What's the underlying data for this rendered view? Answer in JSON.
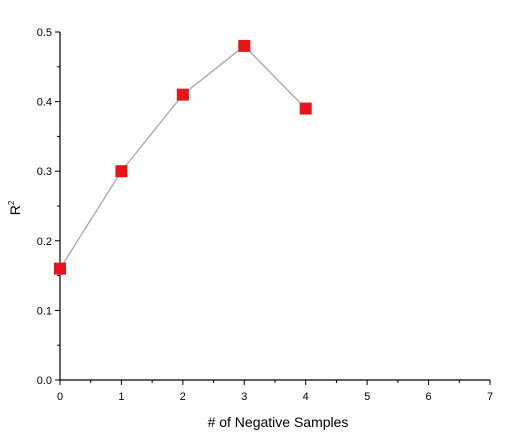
{
  "chart_data": {
    "type": "line",
    "xlabel": "# of Negative Samples",
    "ylabel": "R",
    "ylabel_superscript": "2",
    "xlim": [
      0,
      7
    ],
    "ylim": [
      0,
      0.5
    ],
    "x_ticks": [
      "0",
      "1",
      "2",
      "3",
      "4",
      "5",
      "6",
      "7"
    ],
    "y_ticks": [
      "0.0",
      "0.1",
      "0.2",
      "0.3",
      "0.4",
      "0.5"
    ],
    "grid": false,
    "series": [
      {
        "x": [
          0,
          1,
          2,
          3,
          4
        ],
        "y": [
          0.16,
          0.3,
          0.41,
          0.48,
          0.39
        ],
        "marker": "square",
        "marker_color": "#e8141a",
        "line_color": "#a6a6a6"
      }
    ]
  }
}
